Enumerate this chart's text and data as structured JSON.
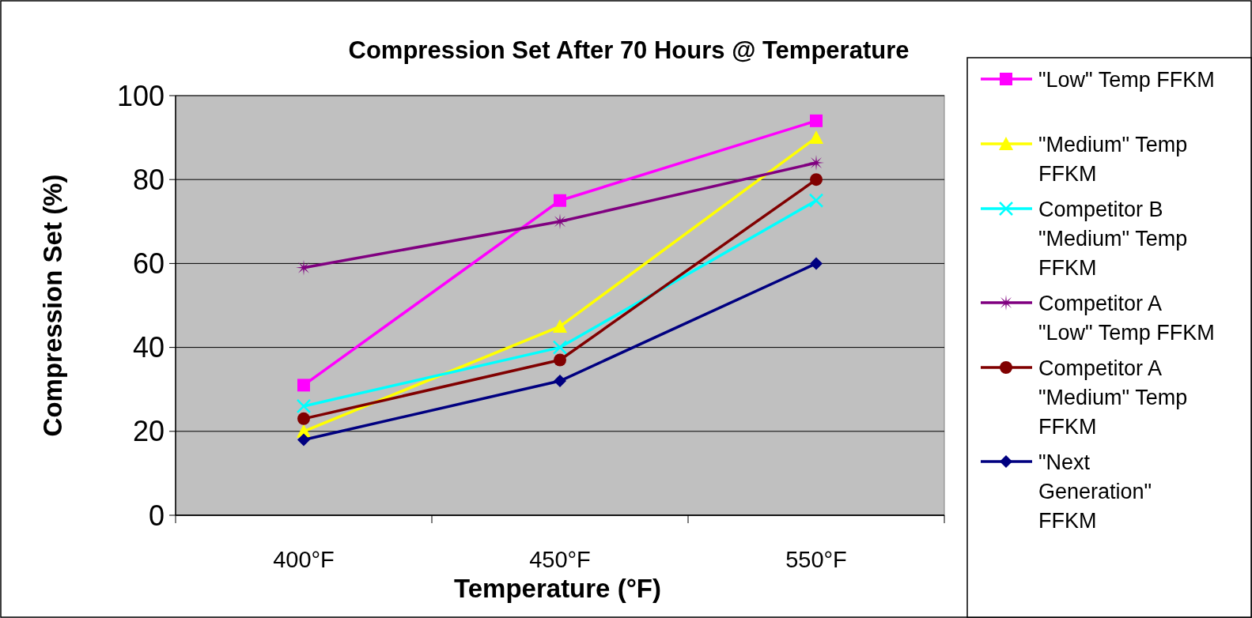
{
  "chart_data": {
    "type": "line",
    "title": "Compression Set After 70 Hours @ Temperature",
    "xlabel": "Temperature (°F)",
    "ylabel": "Compression Set (%)",
    "categories": [
      "400°F",
      "450°F",
      "550°F"
    ],
    "ylim": [
      0,
      100
    ],
    "yticks": [
      0,
      20,
      40,
      60,
      80,
      100
    ],
    "grid": "y",
    "legend": "right",
    "series": [
      {
        "name": "\"Low\" Temp FFKM",
        "color": "#ff00ff",
        "marker": "square",
        "values": [
          31,
          75,
          94
        ]
      },
      {
        "name": "\"Medium\" Temp FFKM",
        "color": "#ffff00",
        "marker": "triangle",
        "values": [
          20,
          45,
          90
        ]
      },
      {
        "name": "Competitor B \"Medium\" Temp FFKM",
        "color": "#00ffff",
        "marker": "cross",
        "values": [
          26,
          40,
          75
        ]
      },
      {
        "name": "Competitor A \"Low\" Temp FFKM",
        "color": "#800080",
        "marker": "star",
        "values": [
          59,
          70,
          84
        ]
      },
      {
        "name": "Competitor A \"Medium\" Temp FFKM",
        "color": "#800000",
        "marker": "circle",
        "values": [
          23,
          37,
          80
        ]
      },
      {
        "name": "\"Next Generation\" FFKM",
        "color": "#000080",
        "marker": "diamond",
        "values": [
          18,
          32,
          60
        ]
      }
    ]
  }
}
